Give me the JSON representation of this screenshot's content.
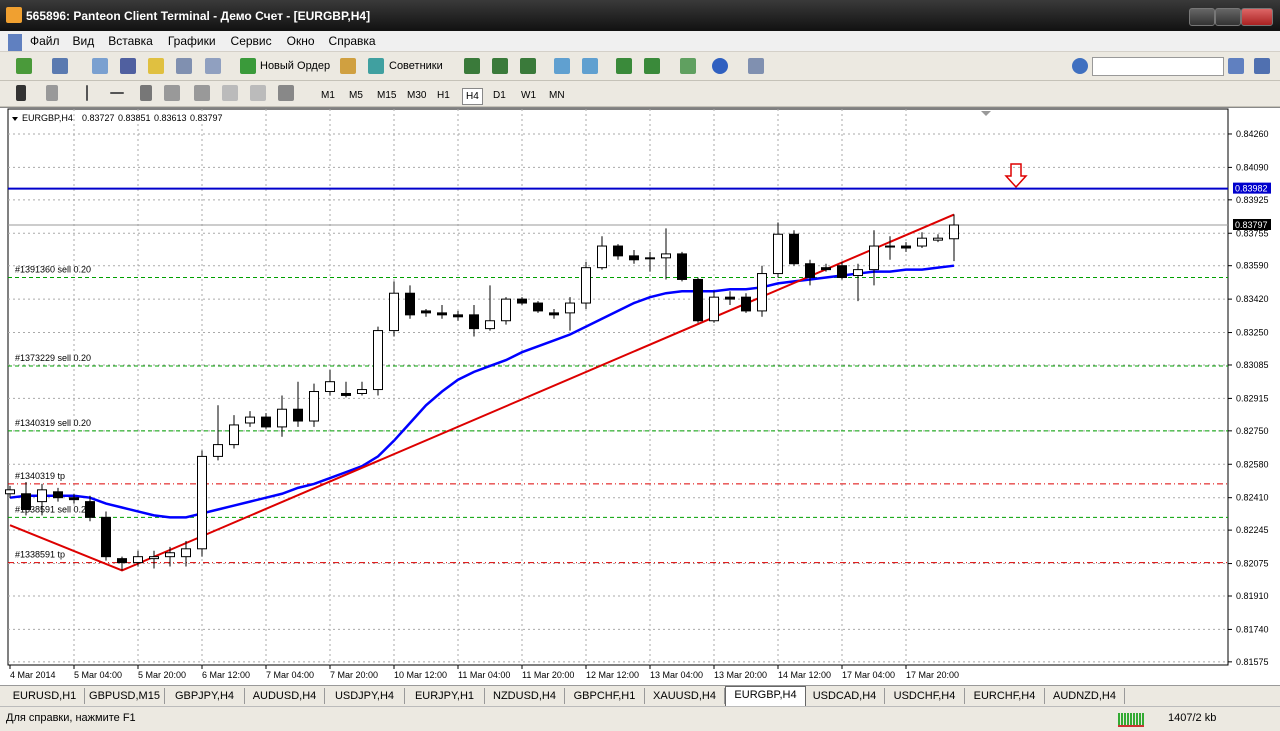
{
  "window": {
    "title": "565896: Panteon Client Terminal - Демо Счет - [EURGBP,H4]"
  },
  "menu": [
    "Файл",
    "Вид",
    "Вставка",
    "Графики",
    "Сервис",
    "Окно",
    "Справка"
  ],
  "toolbar": {
    "new_order": "Новый Ордер",
    "experts": "Советники",
    "timeframes": [
      "M1",
      "M5",
      "M15",
      "M30",
      "H1",
      "H4",
      "D1",
      "W1",
      "MN"
    ],
    "active_timeframe": 5
  },
  "chart_data": {
    "type": "candlestick",
    "symbol": "EURGBP,H4",
    "up_color": "#ffffff",
    "down_color": "#000000",
    "open": [
      0.8243,
      0.8243,
      0.8239,
      0.8244,
      0.8241,
      0.8239,
      0.8231,
      0.821,
      0.8208,
      0.821,
      0.8211,
      0.8211,
      0.8215,
      0.8262,
      0.8268,
      0.8279,
      0.8282,
      0.8277,
      0.8286,
      0.828,
      0.8295,
      0.8294,
      0.8294,
      0.8296,
      0.8326,
      0.8345,
      0.8336,
      0.8335,
      0.8334,
      0.8334,
      0.8327,
      0.8331,
      0.8342,
      0.834,
      0.8335,
      0.8335,
      0.834,
      0.8358,
      0.8369,
      0.8364,
      0.8363,
      0.8363,
      0.8365,
      0.8352,
      0.8331,
      0.8343,
      0.8343,
      0.8336,
      0.8355,
      0.8375,
      0.836,
      0.8358,
      0.8359,
      0.8354,
      0.8357,
      0.8369,
      0.8369,
      0.8369,
      0.8372,
      0.83727
    ],
    "high": [
      0.8247,
      0.8249,
      0.8248,
      0.8246,
      0.8243,
      0.8242,
      0.8234,
      0.8211,
      0.8214,
      0.8214,
      0.8216,
      0.8219,
      0.8265,
      0.8288,
      0.8283,
      0.8285,
      0.8284,
      0.8293,
      0.83,
      0.8299,
      0.8306,
      0.83,
      0.83,
      0.8328,
      0.8351,
      0.8349,
      0.8337,
      0.8339,
      0.8336,
      0.8339,
      0.8349,
      0.8343,
      0.8343,
      0.8341,
      0.8337,
      0.8343,
      0.8361,
      0.8374,
      0.837,
      0.8367,
      0.8366,
      0.8378,
      0.8366,
      0.8353,
      0.8346,
      0.8346,
      0.8345,
      0.8359,
      0.8381,
      0.8377,
      0.8362,
      0.836,
      0.8361,
      0.836,
      0.8377,
      0.8374,
      0.8371,
      0.8376,
      0.8375,
      0.83851
    ],
    "low": [
      0.8241,
      0.8232,
      0.8232,
      0.8239,
      0.8238,
      0.8229,
      0.8209,
      0.8204,
      0.8206,
      0.8205,
      0.8206,
      0.8206,
      0.8211,
      0.826,
      0.8266,
      0.8277,
      0.8276,
      0.8272,
      0.8277,
      0.8277,
      0.8293,
      0.8292,
      0.8293,
      0.8293,
      0.8323,
      0.8332,
      0.8333,
      0.8332,
      0.8331,
      0.8323,
      0.8326,
      0.8329,
      0.8339,
      0.8335,
      0.8332,
      0.8326,
      0.8337,
      0.8357,
      0.8362,
      0.836,
      0.8356,
      0.8352,
      0.8351,
      0.833,
      0.833,
      0.8339,
      0.8335,
      0.8333,
      0.8353,
      0.8359,
      0.8349,
      0.8356,
      0.8352,
      0.8341,
      0.8349,
      0.8362,
      0.8366,
      0.8368,
      0.8371,
      0.83613
    ],
    "close": [
      0.8245,
      0.8235,
      0.8245,
      0.8241,
      0.824,
      0.8231,
      0.8211,
      0.8208,
      0.8211,
      0.8211,
      0.8213,
      0.8215,
      0.8262,
      0.8268,
      0.8278,
      0.8282,
      0.8277,
      0.8286,
      0.828,
      0.8295,
      0.83,
      0.8293,
      0.8296,
      0.8326,
      0.8345,
      0.8334,
      0.8335,
      0.8334,
      0.8333,
      0.8327,
      0.8331,
      0.8342,
      0.834,
      0.8336,
      0.8334,
      0.834,
      0.8358,
      0.8369,
      0.8364,
      0.8362,
      0.8363,
      0.8365,
      0.8352,
      0.8331,
      0.8343,
      0.8342,
      0.8336,
      0.8355,
      0.8375,
      0.836,
      0.8353,
      0.8357,
      0.8353,
      0.8357,
      0.8369,
      0.8369,
      0.8368,
      0.8373,
      0.8373,
      0.83797
    ],
    "ma": {
      "color": "#0000ff",
      "values": [
        0.8241,
        0.8242,
        0.8242,
        0.8242,
        0.8242,
        0.8241,
        0.8238,
        0.8236,
        0.8234,
        0.8232,
        0.8231,
        0.8231,
        0.8233,
        0.8235,
        0.8237,
        0.8239,
        0.8241,
        0.8243,
        0.8246,
        0.8248,
        0.8251,
        0.8254,
        0.8257,
        0.8262,
        0.827,
        0.8279,
        0.8288,
        0.8295,
        0.8301,
        0.8305,
        0.8308,
        0.8311,
        0.8315,
        0.8318,
        0.8321,
        0.8324,
        0.8328,
        0.8332,
        0.8336,
        0.834,
        0.8343,
        0.8345,
        0.8346,
        0.8346,
        0.8346,
        0.8347,
        0.8347,
        0.8348,
        0.835,
        0.8351,
        0.8352,
        0.8353,
        0.8354,
        0.8355,
        0.8356,
        0.8356,
        0.8357,
        0.8357,
        0.8358,
        0.8359
      ]
    },
    "trendline": {
      "color": "#dd0000",
      "x": [
        0,
        7,
        59
      ],
      "values": [
        0.8227,
        0.8204,
        0.8385
      ]
    },
    "price_line": {
      "value": 0.83982,
      "color": "#0000cc"
    },
    "levels": [
      {
        "label": "#1391360 sell 0.20",
        "value": 0.8353,
        "color": "#00a000",
        "style": "dash"
      },
      {
        "label": "#1373229 sell 0.20",
        "value": 0.8308,
        "color": "#00a000",
        "style": "dash"
      },
      {
        "label": "#1340319 sell 0.20",
        "value": 0.8275,
        "color": "#00a000",
        "style": "dash"
      },
      {
        "label": "#1340319 tp",
        "value": 0.8248,
        "color": "#dd0000",
        "style": "dashdot"
      },
      {
        "label": "#1338591 sell 0.20",
        "value": 0.8231,
        "color": "#00a000",
        "style": "dash"
      },
      {
        "label": "#1338591 tp",
        "value": 0.8208,
        "color": "#dd0000",
        "style": "dashdot"
      }
    ],
    "xlim": [
      -0.125,
      76.125
    ],
    "xticks": [
      {
        "value": 0,
        "label": "4 Mar 2014"
      },
      {
        "value": 4,
        "label": "5 Mar 04:00"
      },
      {
        "value": 8,
        "label": "5 Mar 20:00"
      },
      {
        "value": 12,
        "label": "6 Mar 12:00"
      },
      {
        "value": 16,
        "label": "7 Mar 04:00"
      },
      {
        "value": 20,
        "label": "7 Mar 20:00"
      },
      {
        "value": 24,
        "label": "10 Mar 12:00"
      },
      {
        "value": 28,
        "label": "11 Mar 04:00"
      },
      {
        "value": 32,
        "label": "11 Mar 20:00"
      },
      {
        "value": 36,
        "label": "12 Mar 12:00"
      },
      {
        "value": 40,
        "label": "13 Mar 04:00"
      },
      {
        "value": 44,
        "label": "13 Mar 20:00"
      },
      {
        "value": 48,
        "label": "14 Mar 12:00"
      },
      {
        "value": 52,
        "label": "17 Mar 04:00"
      },
      {
        "value": 56,
        "label": "17 Mar 20:00"
      }
    ],
    "ylim": [
      0.81559,
      0.84387
    ],
    "yticks": [
      {
        "value": 0.8426,
        "label": "0.84260"
      },
      {
        "value": 0.8409,
        "label": "0.84090"
      },
      0.83925,
      0.83755,
      {
        "value": 0.8359,
        "label": "0.83590"
      },
      {
        "value": 0.8342,
        "label": "0.83420"
      },
      {
        "value": 0.8325,
        "label": "0.83250"
      },
      0.83085,
      0.82915,
      {
        "value": 0.8275,
        "label": "0.82750"
      },
      {
        "value": 0.8258,
        "label": "0.82580"
      },
      {
        "value": 0.8241,
        "label": "0.82410"
      },
      0.82245,
      0.82075,
      {
        "value": 0.8191,
        "label": "0.81910"
      },
      {
        "value": 0.8174,
        "label": "0.81740"
      },
      0.81575
    ],
    "grid": true
  },
  "tabs": [
    "EURUSD,H1",
    "GBPUSD,M15",
    "GBPJPY,H4",
    "AUDUSD,H4",
    "USDJPY,H4",
    "EURJPY,H1",
    "NZDUSD,H4",
    "GBPCHF,H1",
    "XAUUSD,H4",
    "EURGBP,H4",
    "USDCAD,H4",
    "USDCHF,H4",
    "EURCHF,H4",
    "AUDNZD,H4"
  ],
  "active_tab": 9,
  "status": {
    "help": "Для справки, нажмите F1",
    "traffic": "1407/2 kb"
  }
}
